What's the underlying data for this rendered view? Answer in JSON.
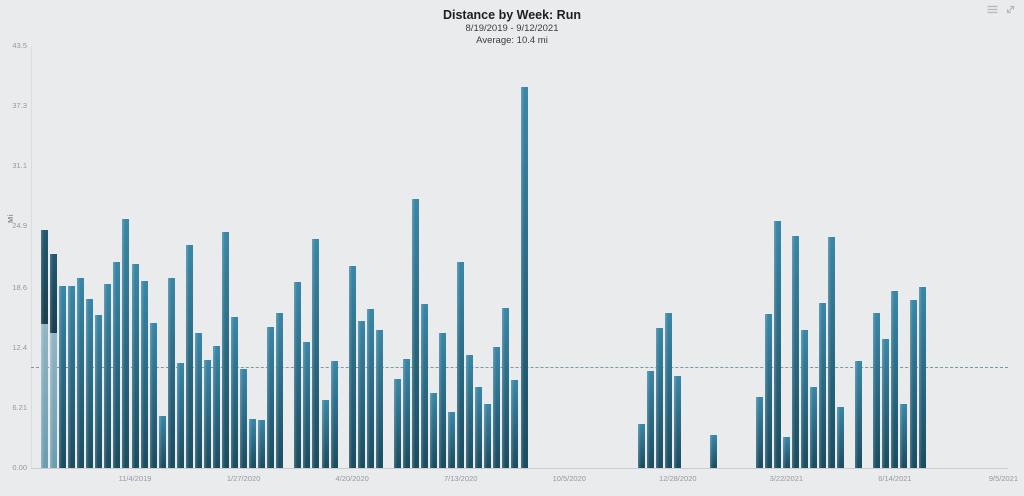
{
  "header": {
    "title": "Distance by Week: Run",
    "date_range": "8/19/2019 - 9/12/2021",
    "average_label": "Average: 10.4 mi"
  },
  "colors": {
    "background": "#e9ebec",
    "bar_top": "#3a87a7",
    "bar_bottom": "#1b4c5f",
    "bar_base_segment": "#7ea6b8",
    "average_line": "#7b98a6",
    "axis_line": "#c9cdcf",
    "tick_text": "#96999b"
  },
  "chart_data": {
    "type": "bar",
    "title": "Distance by Week: Run",
    "subtitle": "8/19/2019 - 9/12/2021",
    "ylabel": "Mi",
    "ylim": [
      0,
      43.5
    ],
    "average_mi": 10.4,
    "grid": false,
    "weeks_total": 108,
    "start_week": "8/19/2019",
    "end_week": "9/12/2021",
    "y_tick_labels": [
      "0.00",
      "6.21",
      "12.4",
      "18.6",
      "24.9",
      "31.1",
      "37.3",
      "43.5"
    ],
    "y_tick_values": [
      0,
      6.21,
      12.4,
      18.6,
      24.9,
      31.1,
      37.3,
      43.5
    ],
    "x_ticks": [
      {
        "week": 11,
        "label": "11/4/2019"
      },
      {
        "week": 23,
        "label": "1/27/2020"
      },
      {
        "week": 35,
        "label": "4/20/2020"
      },
      {
        "week": 47,
        "label": "7/13/2020"
      },
      {
        "week": 59,
        "label": "10/5/2020"
      },
      {
        "week": 71,
        "label": "12/28/2020"
      },
      {
        "week": 83,
        "label": "3/22/2021"
      },
      {
        "week": 95,
        "label": "6/14/2021"
      },
      {
        "week": 107,
        "label": "9/5/2021"
      }
    ],
    "bars": [
      {
        "week": 1,
        "total": 24.5,
        "base_segment": 14.8
      },
      {
        "week": 2,
        "total": 22.1,
        "base_segment": 13.9
      },
      {
        "week": 3,
        "total": 18.8
      },
      {
        "week": 4,
        "total": 18.8
      },
      {
        "week": 5,
        "total": 19.6
      },
      {
        "week": 6,
        "total": 17.4
      },
      {
        "week": 7,
        "total": 15.8
      },
      {
        "week": 8,
        "total": 19.0
      },
      {
        "week": 9,
        "total": 21.2
      },
      {
        "week": 10,
        "total": 25.7
      },
      {
        "week": 11,
        "total": 21.0
      },
      {
        "week": 12,
        "total": 19.3
      },
      {
        "week": 13,
        "total": 14.9
      },
      {
        "week": 14,
        "total": 5.4
      },
      {
        "week": 15,
        "total": 19.6
      },
      {
        "week": 16,
        "total": 10.8
      },
      {
        "week": 17,
        "total": 23.0
      },
      {
        "week": 18,
        "total": 13.9
      },
      {
        "week": 19,
        "total": 11.1
      },
      {
        "week": 20,
        "total": 12.6
      },
      {
        "week": 21,
        "total": 24.3
      },
      {
        "week": 22,
        "total": 15.6
      },
      {
        "week": 23,
        "total": 10.2
      },
      {
        "week": 24,
        "total": 5.1
      },
      {
        "week": 25,
        "total": 4.9
      },
      {
        "week": 26,
        "total": 14.5
      },
      {
        "week": 27,
        "total": 16.0
      },
      {
        "week": 29,
        "total": 19.2
      },
      {
        "week": 30,
        "total": 13.0
      },
      {
        "week": 31,
        "total": 23.6
      },
      {
        "week": 32,
        "total": 7.0
      },
      {
        "week": 33,
        "total": 11.0
      },
      {
        "week": 35,
        "total": 20.8
      },
      {
        "week": 36,
        "total": 15.2
      },
      {
        "week": 37,
        "total": 16.4
      },
      {
        "week": 38,
        "total": 14.2
      },
      {
        "week": 40,
        "total": 9.2
      },
      {
        "week": 41,
        "total": 11.2
      },
      {
        "week": 42,
        "total": 27.7
      },
      {
        "week": 43,
        "total": 16.9
      },
      {
        "week": 44,
        "total": 7.7
      },
      {
        "week": 45,
        "total": 13.9
      },
      {
        "week": 46,
        "total": 5.8
      },
      {
        "week": 47,
        "total": 21.2
      },
      {
        "week": 48,
        "total": 11.6
      },
      {
        "week": 49,
        "total": 8.3
      },
      {
        "week": 50,
        "total": 6.6
      },
      {
        "week": 51,
        "total": 12.5
      },
      {
        "week": 52,
        "total": 16.5
      },
      {
        "week": 53,
        "total": 9.1
      },
      {
        "week": 54,
        "total": 39.3
      },
      {
        "week": 67,
        "total": 4.5
      },
      {
        "week": 68,
        "total": 10.0
      },
      {
        "week": 69,
        "total": 14.4
      },
      {
        "week": 70,
        "total": 16.0
      },
      {
        "week": 71,
        "total": 9.5
      },
      {
        "week": 75,
        "total": 3.4
      },
      {
        "week": 80,
        "total": 7.3
      },
      {
        "week": 81,
        "total": 15.9
      },
      {
        "week": 82,
        "total": 25.5
      },
      {
        "week": 83,
        "total": 3.2
      },
      {
        "week": 84,
        "total": 23.9
      },
      {
        "week": 85,
        "total": 14.2
      },
      {
        "week": 86,
        "total": 8.3
      },
      {
        "week": 87,
        "total": 17.0
      },
      {
        "week": 88,
        "total": 23.8
      },
      {
        "week": 89,
        "total": 6.3
      },
      {
        "week": 91,
        "total": 11.0
      },
      {
        "week": 93,
        "total": 16.0
      },
      {
        "week": 94,
        "total": 13.3
      },
      {
        "week": 95,
        "total": 18.2
      },
      {
        "week": 96,
        "total": 6.6
      },
      {
        "week": 97,
        "total": 17.3
      },
      {
        "week": 98,
        "total": 18.7
      }
    ]
  }
}
